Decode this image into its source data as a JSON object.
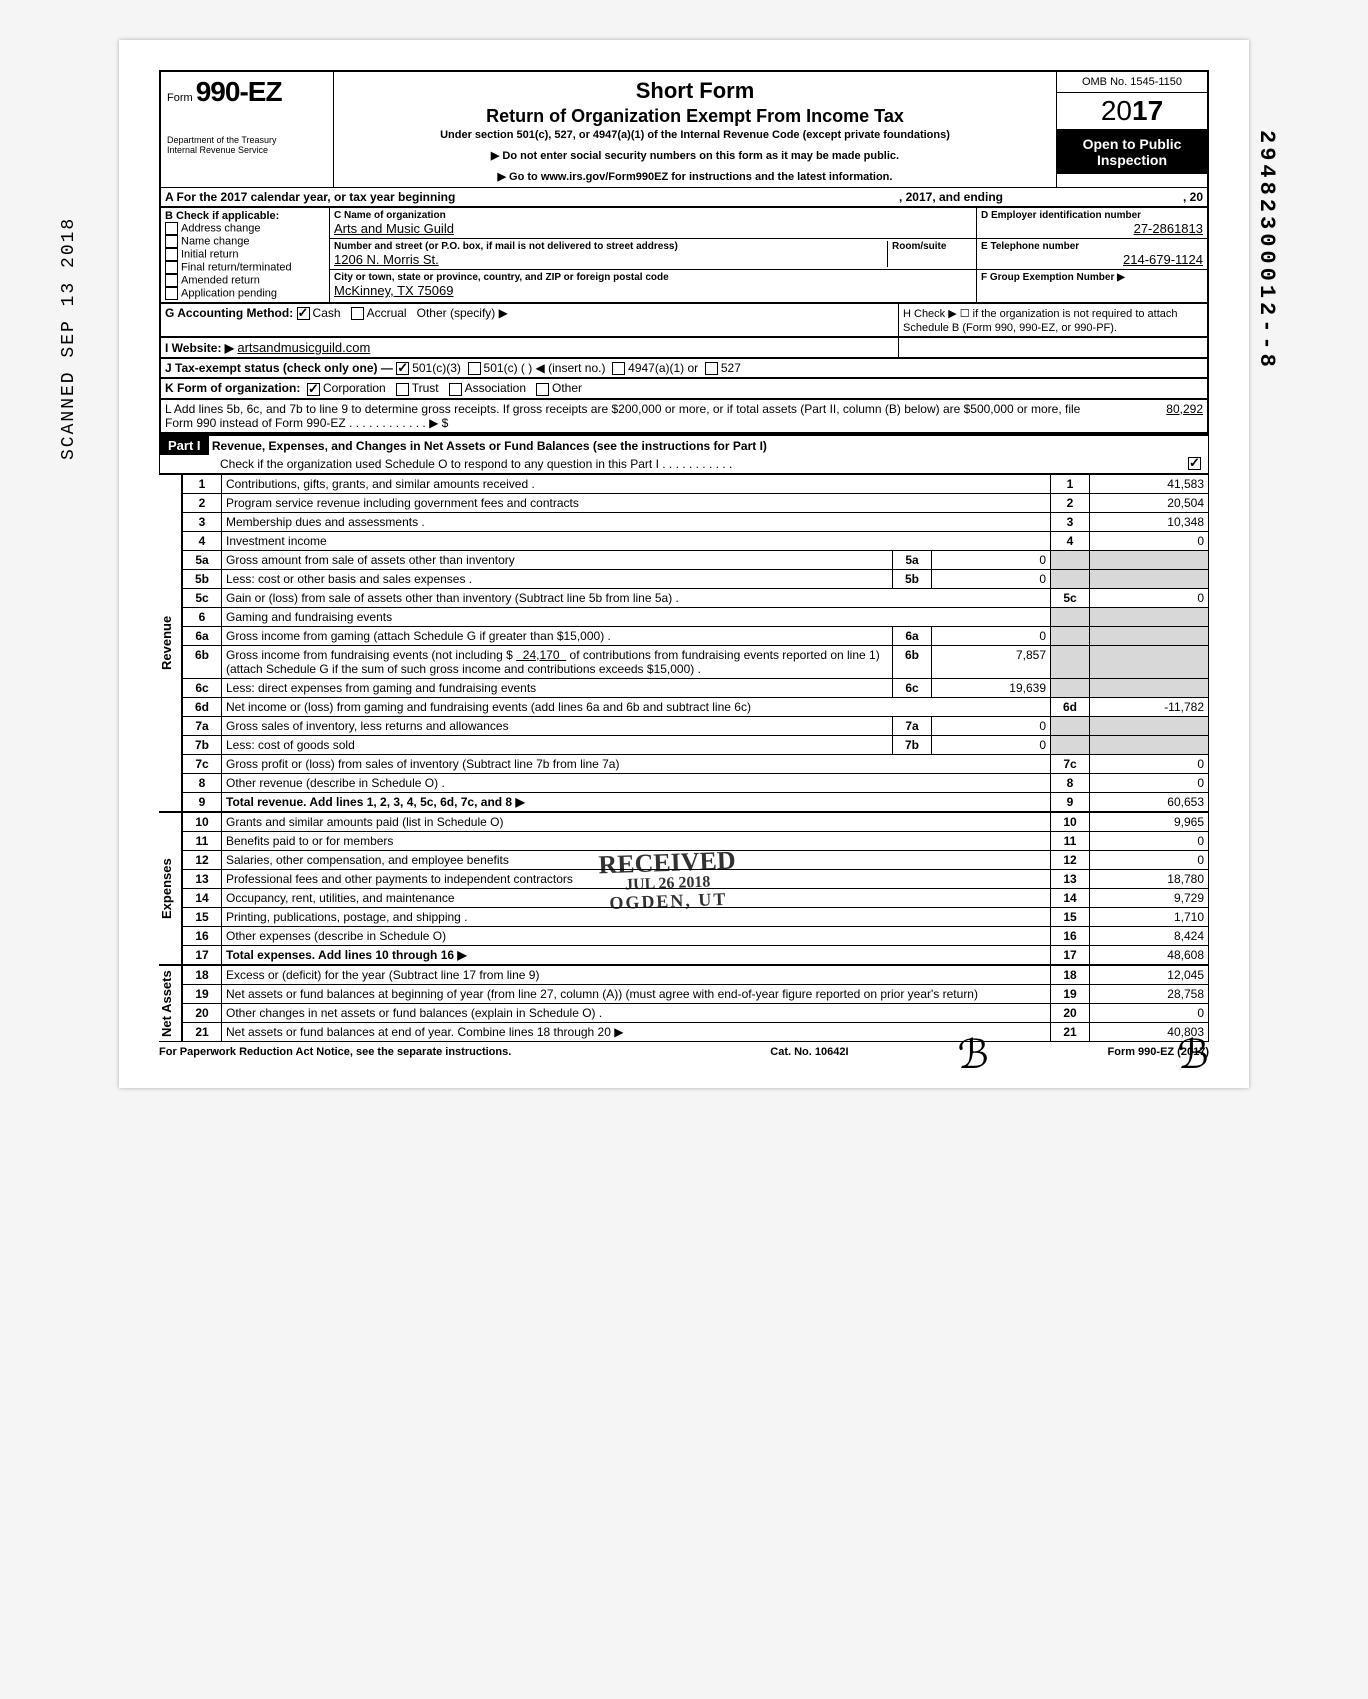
{
  "side_stamp": "SCANNED   SEP 13 2018",
  "right_code": "29482300012--8",
  "omb": "OMB No. 1545-1150",
  "form_prefix": "Form",
  "form_number": "990-EZ",
  "year_light": "20",
  "year_bold": "17",
  "open_public": "Open to Public Inspection",
  "dept1": "Department of the Treasury",
  "dept2": "Internal Revenue Service",
  "title1": "Short Form",
  "title2": "Return of Organization Exempt From Income Tax",
  "subtitle": "Under section 501(c), 527, or 4947(a)(1) of the Internal Revenue Code (except private foundations)",
  "note1": "▶ Do not enter social security numbers on this form as it may be made public.",
  "note2": "▶ Go to www.irs.gov/Form990EZ for instructions and the latest information.",
  "line_a": "A  For the 2017 calendar year, or tax year beginning",
  "line_a_mid": ", 2017, and ending",
  "line_a_end": ", 20",
  "b_header": "B  Check if applicable:",
  "b_items": [
    "Address change",
    "Name change",
    "Initial return",
    "Final return/terminated",
    "Amended return",
    "Application pending"
  ],
  "c_label": "C  Name of organization",
  "org_name": "Arts and Music Guild",
  "c_addr_label": "Number and street (or P.O. box, if mail is not delivered to street address)",
  "room_label": "Room/suite",
  "street": "1206 N. Morris St.",
  "c_city_label": "City or town, state or province, country, and ZIP or foreign postal code",
  "city": "McKinney, TX 75069",
  "d_label": "D Employer identification number",
  "ein": "27-2861813",
  "e_label": "E Telephone number",
  "phone": "214-679-1124",
  "f_label": "F Group Exemption Number ▶",
  "g_label": "G  Accounting Method:",
  "g_cash": "Cash",
  "g_accrual": "Accrual",
  "g_other": "Other (specify) ▶",
  "h_label": "H  Check ▶ ☐ if the organization is not required to attach Schedule B (Form 990, 990-EZ, or 990-PF).",
  "i_label": "I  Website: ▶",
  "website": "artsandmusicguild.com",
  "j_label": "J  Tax-exempt status (check only one) —",
  "j_501c3": "501(c)(3)",
  "j_501c": "501(c) (        ) ◀ (insert no.)",
  "j_4947": "4947(a)(1) or",
  "j_527": "527",
  "k_label": "K  Form of organization:",
  "k_corp": "Corporation",
  "k_trust": "Trust",
  "k_assoc": "Association",
  "k_other": "Other",
  "l_text": "L  Add lines 5b, 6c, and 7b to line 9 to determine gross receipts. If gross receipts are $200,000 or more, or if total assets (Part II, column (B) below) are $500,000 or more, file Form 990 instead of Form 990-EZ .   .   .   .   .   .   .   .   .   .   .   .   ▶  $",
  "l_amount": "80,292",
  "part1_label": "Part I",
  "part1_title": "Revenue, Expenses, and Changes in Net Assets or Fund Balances (see the instructions for Part I)",
  "part1_check": "Check if the organization used Schedule O to respond to any question in this Part I  .   .   .   .   .   .   .   .   .   .   .",
  "rev_label": "Revenue",
  "exp_label": "Expenses",
  "net_label": "Net Assets",
  "lines": {
    "1": {
      "t": "Contributions, gifts, grants, and similar amounts received .",
      "a": "41,583"
    },
    "2": {
      "t": "Program service revenue including government fees and contracts",
      "a": "20,504"
    },
    "3": {
      "t": "Membership dues and assessments .",
      "a": "10,348"
    },
    "4": {
      "t": "Investment income",
      "a": "0"
    },
    "5a": {
      "t": "Gross amount from sale of assets other than inventory",
      "box": "5a",
      "bv": "0"
    },
    "5b": {
      "t": "Less: cost or other basis and sales expenses .",
      "box": "5b",
      "bv": "0"
    },
    "5c": {
      "t": "Gain or (loss) from sale of assets other than inventory (Subtract line 5b from line 5a) .",
      "a": "0"
    },
    "6": {
      "t": "Gaming and fundraising events"
    },
    "6a": {
      "t": "Gross income from gaming (attach Schedule G if greater than $15,000) .",
      "box": "6a",
      "bv": "0"
    },
    "6b": {
      "t": "Gross income from fundraising events (not including  $",
      "t2": "of contributions from fundraising events reported on line 1) (attach Schedule G if the sum of such gross income and contributions exceeds $15,000) .",
      "amt_inline": "24,170",
      "box": "6b",
      "bv": "7,857"
    },
    "6c": {
      "t": "Less: direct expenses from gaming and fundraising events",
      "box": "6c",
      "bv": "19,639"
    },
    "6d": {
      "t": "Net income or (loss) from gaming and fundraising events (add lines 6a and 6b and subtract line 6c)",
      "a": "-11,782"
    },
    "7a": {
      "t": "Gross sales of inventory, less returns and allowances",
      "box": "7a",
      "bv": "0"
    },
    "7b": {
      "t": "Less: cost of goods sold",
      "box": "7b",
      "bv": "0"
    },
    "7c": {
      "t": "Gross profit or (loss) from sales of inventory (Subtract line 7b from line 7a)",
      "a": "0"
    },
    "8": {
      "t": "Other revenue (describe in Schedule O) .",
      "a": "0"
    },
    "9": {
      "t": "Total revenue. Add lines 1, 2, 3, 4, 5c, 6d, 7c, and 8",
      "a": "60,653",
      "bold": true,
      "arrow": true
    },
    "10": {
      "t": "Grants and similar amounts paid (list in Schedule O)",
      "a": "9,965"
    },
    "11": {
      "t": "Benefits paid to or for members",
      "a": "0"
    },
    "12": {
      "t": "Salaries, other compensation, and employee benefits",
      "a": "0"
    },
    "13": {
      "t": "Professional fees and other payments to independent contractors",
      "a": "18,780"
    },
    "14": {
      "t": "Occupancy, rent, utilities, and maintenance",
      "a": "9,729"
    },
    "15": {
      "t": "Printing, publications, postage, and shipping .",
      "a": "1,710"
    },
    "16": {
      "t": "Other expenses (describe in Schedule O)",
      "a": "8,424"
    },
    "17": {
      "t": "Total expenses. Add lines 10 through 16",
      "a": "48,608",
      "bold": true,
      "arrow": true
    },
    "18": {
      "t": "Excess or (deficit) for the year (Subtract line 17 from line 9)",
      "a": "12,045"
    },
    "19": {
      "t": "Net assets or fund balances at beginning of year (from line 27, column (A)) (must agree with end-of-year figure reported on prior year's return)",
      "a": "28,758"
    },
    "20": {
      "t": "Other changes in net assets or fund balances (explain in Schedule O) .",
      "a": "0"
    },
    "21": {
      "t": "Net assets or fund balances at end of year. Combine lines 18 through 20",
      "a": "40,803",
      "arrow": true
    }
  },
  "stamp_line1": "RECEIVED",
  "stamp_line2": "JUL 26 2018",
  "stamp_line3": "OGDEN, UT",
  "footer_left": "For Paperwork Reduction Act Notice, see the separate instructions.",
  "footer_mid": "Cat. No. 10642I",
  "footer_right": "Form 990-EZ (2017)"
}
